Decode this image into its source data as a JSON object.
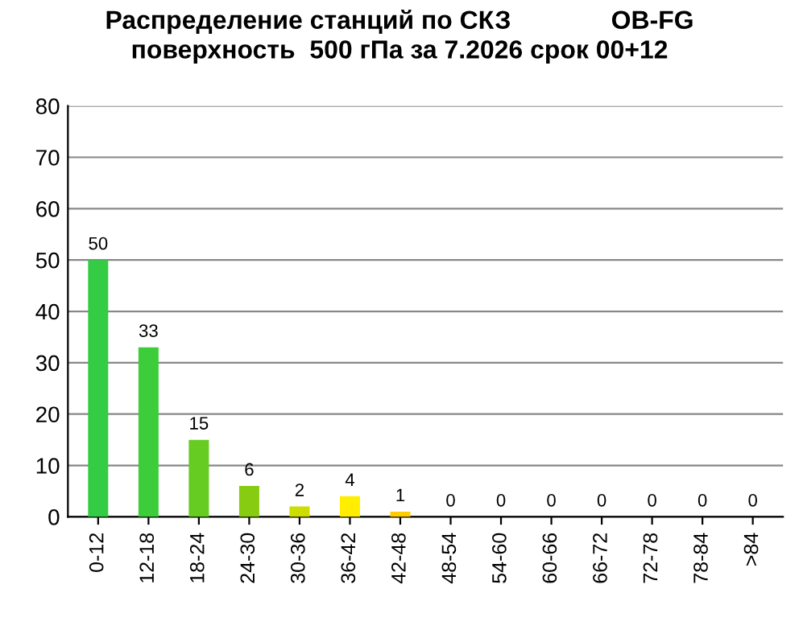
{
  "chart_data": {
    "type": "bar",
    "title": "Распределение станций по СКЗ              OB-FG\nповерхность  500 гПа за 7.2026 срок 00+12",
    "categories": [
      "0-12",
      "12-18",
      "18-24",
      "24-30",
      "30-36",
      "36-42",
      "42-48",
      "48-54",
      "54-60",
      "60-66",
      "66-72",
      "72-78",
      "78-84",
      ">84"
    ],
    "values": [
      50,
      33,
      15,
      6,
      2,
      4,
      1,
      0,
      0,
      0,
      0,
      0,
      0,
      0
    ],
    "colors": [
      "#33cc44",
      "#3dcc3a",
      "#66cc22",
      "#88cc11",
      "#ccdd00",
      "#ffee00",
      "#ffcc00",
      "#ffcc00",
      "#ffcc00",
      "#ffcc00",
      "#ffcc00",
      "#ffcc00",
      "#ffcc00",
      "#ffcc00"
    ],
    "ylim": [
      0,
      80
    ],
    "yticks": [
      0,
      10,
      20,
      30,
      40,
      50,
      60,
      70,
      80
    ],
    "grid": "y",
    "data_labels": true
  }
}
